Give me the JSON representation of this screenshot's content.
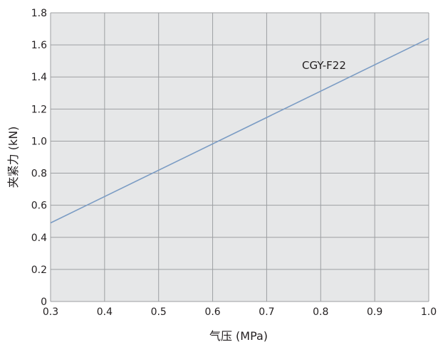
{
  "chart_data": {
    "type": "line",
    "title": "",
    "xlabel": "气压 (MPa)",
    "ylabel": "夹紧力 (kN)",
    "xlim": [
      0.3,
      1.0
    ],
    "ylim": [
      0,
      1.8
    ],
    "x_ticks": [
      0.3,
      0.4,
      0.5,
      0.6,
      0.7,
      0.8,
      0.9,
      1.0
    ],
    "x_tick_labels": [
      "0.3",
      "0.4",
      "0.5",
      "0.6",
      "0.7",
      "0.8",
      "0.9",
      "1.0"
    ],
    "y_ticks": [
      0,
      0.2,
      0.4,
      0.6,
      0.8,
      1.0,
      1.2,
      1.4,
      1.6,
      1.8
    ],
    "y_tick_labels": [
      "0",
      "0.2",
      "0.4",
      "0.6",
      "0.8",
      "1.0",
      "1.2",
      "1.4",
      "1.6",
      "1.8"
    ],
    "grid": true,
    "colors": {
      "plot_background": "#e6e7e8",
      "grid": "#9d9fa2",
      "line": "#7b9cc4"
    },
    "series": [
      {
        "name": "CGY-F22",
        "x": [
          0.3,
          1.0
        ],
        "y": [
          0.49,
          1.64
        ]
      }
    ]
  }
}
